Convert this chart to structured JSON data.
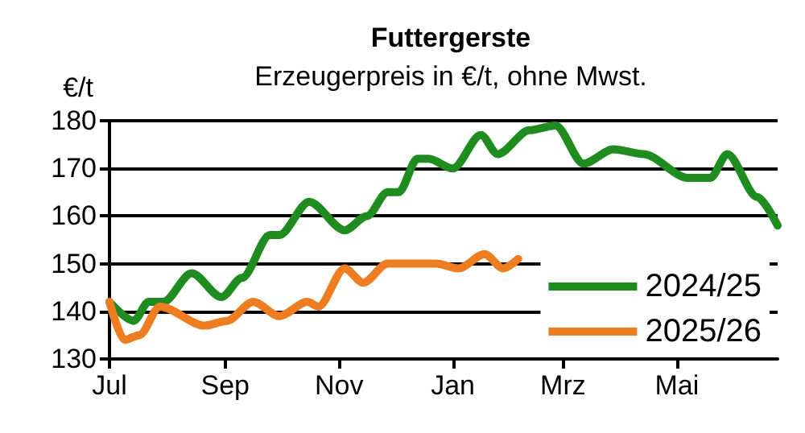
{
  "chart_data": {
    "type": "line",
    "title": "Futtergerste",
    "subtitle": "Erzeugerpreis in €/t, ohne Mwst.",
    "ylabel": "€/t",
    "xlim": [
      "2024-07-01",
      "2025-06-24"
    ],
    "xticks": [
      {
        "value": "2024-07-01",
        "label": "Jul"
      },
      {
        "value": "2024-09-01",
        "label": "Sep"
      },
      {
        "value": "2024-11-01",
        "label": "Nov"
      },
      {
        "value": "2025-01-01",
        "label": "Jan"
      },
      {
        "value": "2025-03-01",
        "label": "Mrz"
      },
      {
        "value": "2025-05-01",
        "label": "Mai"
      }
    ],
    "ylim": [
      130,
      180
    ],
    "yticks": [
      130,
      140,
      150,
      160,
      170,
      180
    ],
    "grid": "y",
    "legend": "bottom right",
    "marker": "none",
    "line_style": "solid",
    "series": [
      {
        "name": "2024/25",
        "color": "#1e8c1e",
        "x": [
          "2024-07-01",
          "2024-07-14",
          "2024-07-22",
          "2024-07-30",
          "2024-08-14",
          "2024-08-30",
          "2024-09-10",
          "2024-09-25",
          "2024-09-30",
          "2024-10-16",
          "2024-11-04",
          "2024-11-16",
          "2024-11-27",
          "2024-12-03",
          "2024-12-13",
          "2024-12-19",
          "2025-01-01",
          "2025-01-16",
          "2025-01-25",
          "2025-02-11",
          "2025-02-25",
          "2025-03-12",
          "2025-03-28",
          "2025-04-13",
          "2025-05-07",
          "2025-05-19",
          "2025-05-28",
          "2025-06-13",
          "2025-06-24"
        ],
        "values": [
          142,
          138,
          142,
          142,
          148,
          143,
          147,
          156,
          156,
          163,
          157,
          160,
          165,
          165,
          172,
          172,
          170,
          177,
          173,
          178,
          179,
          171,
          174,
          173,
          168,
          168,
          173,
          164,
          158
        ]
      },
      {
        "name": "2025/26",
        "color": "#ee7d22",
        "x": [
          "2024-07-01",
          "2024-07-09",
          "2024-07-17",
          "2024-07-28",
          "2024-08-21",
          "2024-09-02",
          "2024-09-16",
          "2024-09-30",
          "2024-10-15",
          "2024-10-21",
          "2024-11-04",
          "2024-11-14",
          "2024-11-27",
          "2024-12-23",
          "2025-01-04",
          "2025-01-18",
          "2025-01-28",
          "2025-02-05"
        ],
        "values": [
          142,
          134,
          135,
          141,
          137,
          138,
          142,
          139,
          142,
          141,
          149,
          146,
          150,
          150,
          149,
          152,
          149,
          151
        ]
      }
    ]
  }
}
